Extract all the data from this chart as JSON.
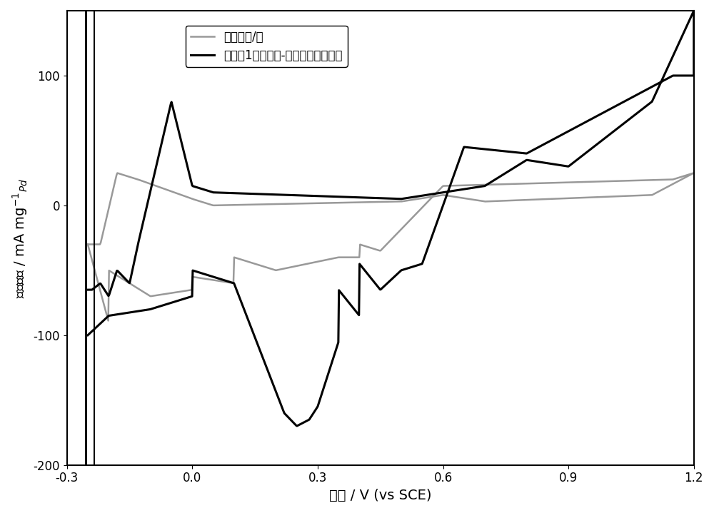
{
  "title": "",
  "xlabel": "电位 / V (vs SCE)",
  "ylabel": "电流密度 / mA mg⁻¹ₚ⁤",
  "xlim": [
    -0.3,
    1.2
  ],
  "ylim": [
    -200,
    150
  ],
  "yticks": [
    -200,
    -100,
    0,
    100
  ],
  "xticks": [
    -0.3,
    0.0,
    0.3,
    0.6,
    0.9,
    1.2
  ],
  "legend_gray": "商业化钔/碳",
  "legend_black": "实施例1制备的钔-钔鈎锂纳米催化剂",
  "gray_color": "#999999",
  "black_color": "#000000",
  "linewidth_gray": 1.8,
  "linewidth_black": 2.2,
  "background_color": "#ffffff",
  "ylabel_rotation": 90
}
